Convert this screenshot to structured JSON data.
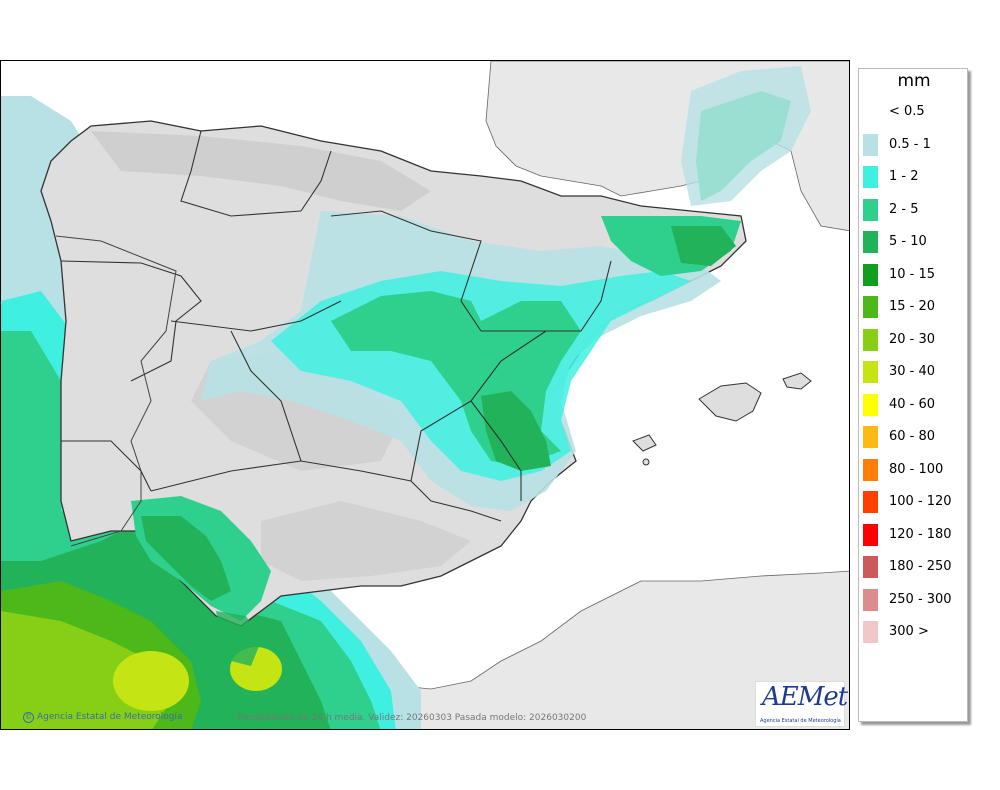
{
  "legend": {
    "unit": "mm",
    "items": [
      {
        "label": "< 0.5",
        "color": "#ffffff"
      },
      {
        "label": "0.5 - 1",
        "color": "#b7e1e4"
      },
      {
        "label": "1 - 2",
        "color": "#3ff0e0"
      },
      {
        "label": "2 - 5",
        "color": "#2fcf8e"
      },
      {
        "label": "5 - 10",
        "color": "#22b25a"
      },
      {
        "label": "10 - 15",
        "color": "#0f9e1e"
      },
      {
        "label": "15 - 20",
        "color": "#4cb81a"
      },
      {
        "label": "20 - 30",
        "color": "#86cf16"
      },
      {
        "label": "30 - 40",
        "color": "#c4e414"
      },
      {
        "label": "40 - 60",
        "color": "#ffff00"
      },
      {
        "label": "60 - 80",
        "color": "#ffb914"
      },
      {
        "label": "80 - 100",
        "color": "#ff7d0a"
      },
      {
        "label": "100 - 120",
        "color": "#ff4000"
      },
      {
        "label": "120 - 180",
        "color": "#ff0000"
      },
      {
        "label": "180 - 250",
        "color": "#cd5a5a"
      },
      {
        "label": "250 - 300",
        "color": "#dc8c8c"
      },
      {
        "label": "300 >",
        "color": "#f0c8c8"
      }
    ]
  },
  "credit": "Agencia Estatal de Meteorología",
  "caption": "Precipitación en 24 h media. Validez: 20260303 Pasada modelo: 2026030200",
  "logo": {
    "text": "AEMet",
    "subtitle": "Agencia Estatal de Meteorología"
  },
  "colors": {
    "land": "#e6e6e6",
    "relief": "#cfcfcf",
    "border": "#333333",
    "sea": "#ffffff"
  }
}
